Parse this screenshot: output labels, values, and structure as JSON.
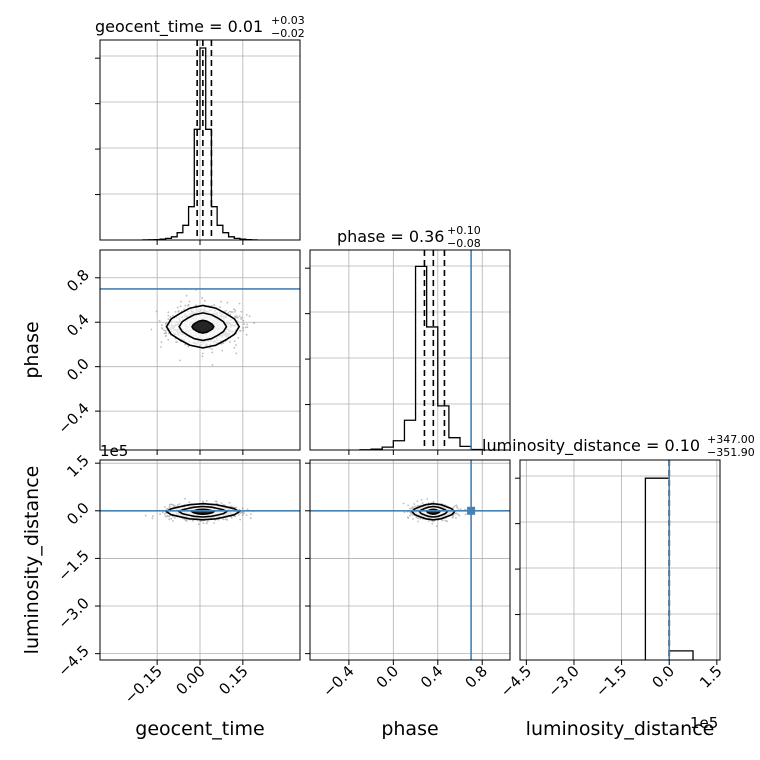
{
  "colors": {
    "truth": "#4682b4",
    "hist": "#000000",
    "grid": "#b0b0b0",
    "axes": "#000000",
    "scatter": "#444444"
  },
  "chart_data": {
    "type": "corner",
    "parameters": [
      "geocent_time",
      "phase",
      "luminosity_distance"
    ],
    "grid": true,
    "truths": {
      "geocent_time": null,
      "phase": 0.7,
      "luminosity_distance": 0
    },
    "diagonal": [
      {
        "parameter": "geocent_time",
        "title": {
          "main": "geocent_time = 0.01",
          "sup": "+0.03",
          "sub": "−0.02"
        },
        "xlim": [
          -0.35,
          0.35
        ],
        "xticks": [
          -0.15,
          0.0,
          0.15
        ],
        "xtick_labels": [
          "−0.15",
          "0.00",
          "0.15"
        ],
        "quantiles": [
          -0.01,
          0.01,
          0.04
        ],
        "bins": [
          -0.2,
          -0.18,
          -0.16,
          -0.14,
          -0.12,
          -0.1,
          -0.08,
          -0.06,
          -0.04,
          -0.02,
          0.0,
          0.02,
          0.04,
          0.06,
          0.08,
          0.1,
          0.12,
          0.14,
          0.16,
          0.18,
          0.2
        ],
        "counts": [
          1,
          2,
          3,
          6,
          12,
          24,
          55,
          110,
          250,
          830,
          1440,
          830,
          250,
          110,
          55,
          24,
          12,
          6,
          3,
          1
        ],
        "ylim": [
          0,
          1500
        ]
      },
      {
        "parameter": "phase",
        "title": {
          "main": "phase = 0.36",
          "sup": "+0.10",
          "sub": "−0.08"
        },
        "xlim": [
          -0.75,
          1.05
        ],
        "xticks": [
          -0.4,
          0.0,
          0.4,
          0.8
        ],
        "xtick_labels": [
          "−0.4",
          "0.0",
          "0.4",
          "0.8"
        ],
        "quantiles": [
          0.28,
          0.36,
          0.46
        ],
        "bins": [
          -0.3,
          -0.2,
          -0.1,
          0.0,
          0.1,
          0.2,
          0.3,
          0.4,
          0.5,
          0.6,
          0.7,
          0.8
        ],
        "counts": [
          2,
          8,
          28,
          90,
          290,
          1790,
          1200,
          430,
          120,
          35,
          5
        ],
        "ylim": [
          0,
          1950
        ]
      },
      {
        "parameter": "luminosity_distance",
        "title": {
          "main": "luminosity_distance = 0.10",
          "sup": "+347.00",
          "sub": "−351.90"
        },
        "xlim": [
          -470000,
          160000
        ],
        "xticks": [
          -450000,
          -300000,
          -150000,
          0,
          150000
        ],
        "xtick_labels": [
          "−4.5",
          "−3.0",
          "−1.5",
          "0.0",
          "1.5"
        ],
        "offset_text": "1e5",
        "quantiles": [
          -351.8,
          0.1,
          347.1
        ],
        "bins": [
          -75000,
          0,
          75000
        ],
        "counts": [
          5000,
          250
        ],
        "ylim": [
          0,
          5500
        ]
      }
    ],
    "lower_panels": [
      {
        "x": "geocent_time",
        "y": "phase",
        "ylim": [
          -0.75,
          1.05
        ],
        "yticks": [
          -0.4,
          0.0,
          0.4,
          0.8
        ],
        "ytick_labels": [
          "−0.4",
          "0.0",
          "0.4",
          "0.8"
        ],
        "center": [
          0.01,
          0.36
        ],
        "spread": [
          0.06,
          0.09
        ]
      },
      {
        "x": "geocent_time",
        "y": "luminosity_distance",
        "ylim": [
          -470000,
          160000
        ],
        "yticks": [
          -450000,
          -300000,
          -150000,
          0,
          150000
        ],
        "ytick_labels": [
          "−4.5",
          "−3.0",
          "−1.5",
          "0.0",
          "1.5"
        ],
        "offset_text": "1e5",
        "center": [
          0.01,
          -3000
        ],
        "spread": [
          0.06,
          12000
        ]
      },
      {
        "x": "phase",
        "y": "luminosity_distance",
        "center": [
          0.36,
          -3000
        ],
        "spread": [
          0.09,
          12000
        ]
      }
    ],
    "axis_labels": {
      "x": [
        "geocent_time",
        "phase",
        "luminosity_distance"
      ],
      "y": [
        "phase",
        "luminosity_distance"
      ]
    }
  }
}
